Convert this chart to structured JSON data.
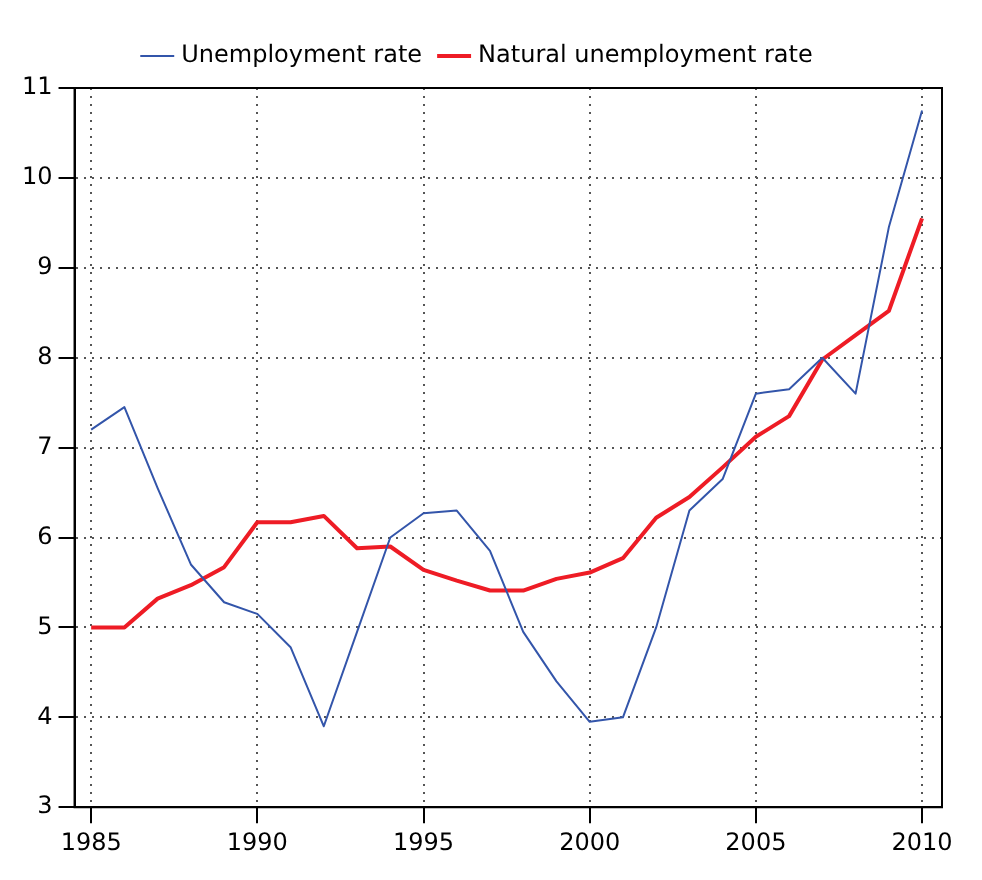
{
  "chart_data": {
    "type": "line",
    "x": [
      1985,
      1986,
      1987,
      1988,
      1989,
      1990,
      1991,
      1992,
      1993,
      1994,
      1995,
      1996,
      1997,
      1998,
      1999,
      2000,
      2001,
      2002,
      2003,
      2004,
      2005,
      2006,
      2007,
      2008,
      2009,
      2010
    ],
    "series": [
      {
        "name": "Unemployment rate",
        "color": "#3355aa",
        "values": [
          7.2,
          7.45,
          6.55,
          5.7,
          5.28,
          5.15,
          4.78,
          3.9,
          4.95,
          6.0,
          6.27,
          6.3,
          5.85,
          4.95,
          4.4,
          3.95,
          4.0,
          5.0,
          6.3,
          6.65,
          7.6,
          7.65,
          8.0,
          7.6,
          9.45,
          10.75
        ]
      },
      {
        "name": "Natural unemployment rate",
        "color": "#ee1c25",
        "values": [
          5.0,
          5.0,
          5.32,
          5.47,
          5.67,
          6.17,
          6.17,
          6.24,
          5.88,
          5.9,
          5.64,
          5.52,
          5.41,
          5.41,
          5.54,
          5.61,
          5.77,
          6.22,
          6.45,
          6.78,
          7.12,
          7.35,
          7.98,
          8.25,
          8.52,
          9.55
        ]
      }
    ],
    "xlim": [
      1984.5,
      2010.6
    ],
    "xticks": [
      1985,
      1990,
      1995,
      2000,
      2005,
      2010
    ],
    "ylim": [
      3,
      11
    ],
    "yticks": [
      3,
      4,
      5,
      6,
      7,
      8,
      9,
      10,
      11
    ],
    "grid": true,
    "legend": "top",
    "marker": "none",
    "line_style": "solid"
  }
}
